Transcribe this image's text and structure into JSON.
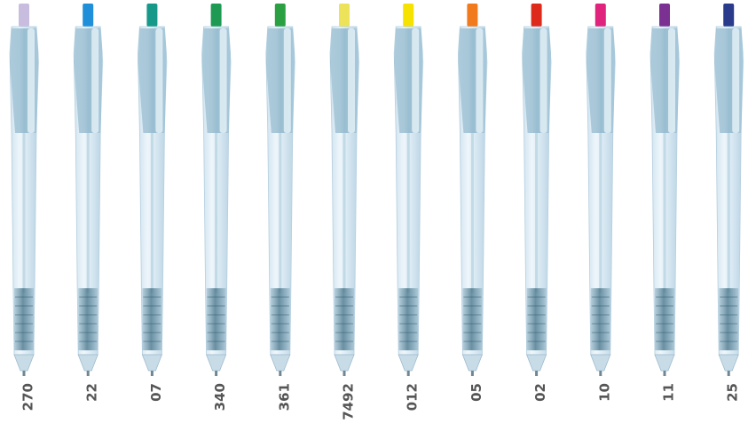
{
  "pens": [
    {
      "label": "270",
      "color": "#c9bddf"
    },
    {
      "label": "22",
      "color": "#1f8fd9"
    },
    {
      "label": "07",
      "color": "#17998a"
    },
    {
      "label": "340",
      "color": "#1f9a52"
    },
    {
      "label": "361",
      "color": "#2ba043"
    },
    {
      "label": "7492",
      "color": "#ece35a"
    },
    {
      "label": "012",
      "color": "#f6e200"
    },
    {
      "label": "05",
      "color": "#f07a1c"
    },
    {
      "label": "02",
      "color": "#dd2a1b"
    },
    {
      "label": "10",
      "color": "#e0237c"
    },
    {
      "label": "11",
      "color": "#7b3192"
    },
    {
      "label": "25",
      "color": "#2b3b8c"
    }
  ]
}
